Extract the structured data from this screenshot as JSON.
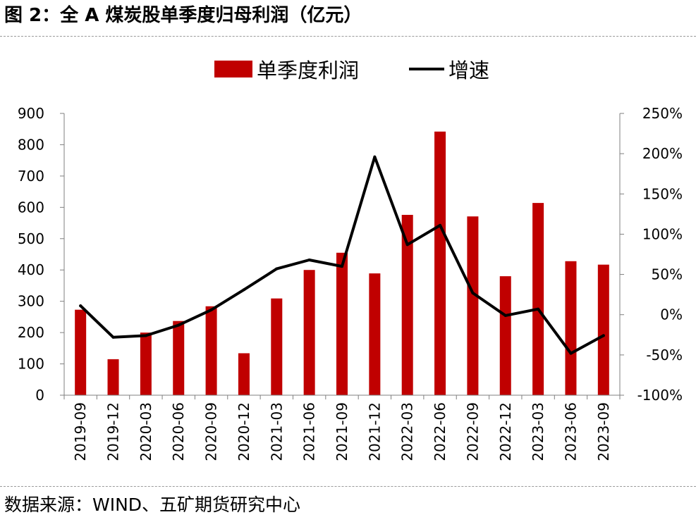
{
  "figure": {
    "label": "图 2：",
    "title": "全 A 煤炭股单季度归母利润（亿元）"
  },
  "source": {
    "label": "数据来源：",
    "text": "WIND、五矿期货研究中心"
  },
  "colors": {
    "bar": "#c00000",
    "line": "#000000",
    "axis": "#7f7f7f"
  },
  "chart_data": {
    "type": "bar",
    "categories": [
      "2019-09",
      "2019-12",
      "2020-03",
      "2020-06",
      "2020-09",
      "2020-12",
      "2021-03",
      "2021-06",
      "2021-09",
      "2021-12",
      "2022-03",
      "2022-06",
      "2022-09",
      "2022-12",
      "2023-03",
      "2023-06",
      "2023-09"
    ],
    "series": [
      {
        "name": "单季度利润",
        "type": "bar",
        "axis": "left",
        "values": [
          273,
          115,
          200,
          237,
          284,
          134,
          309,
          400,
          455,
          389,
          576,
          842,
          571,
          380,
          614,
          428,
          417
        ]
      },
      {
        "name": "增速",
        "type": "line",
        "axis": "right",
        "values": [
          0.11,
          -0.28,
          -0.26,
          -0.13,
          0.06,
          0.31,
          0.57,
          0.68,
          0.6,
          1.96,
          0.87,
          1.11,
          0.27,
          -0.01,
          0.07,
          -0.48,
          -0.26
        ]
      }
    ],
    "y_left": {
      "ylim": [
        0,
        900
      ],
      "ticks": [
        "0",
        "100",
        "200",
        "300",
        "400",
        "500",
        "600",
        "700",
        "800",
        "900"
      ]
    },
    "y_right": {
      "ylim": [
        -1.0,
        2.5
      ],
      "ticks": [
        "-100%",
        "-50%",
        "0%",
        "50%",
        "100%",
        "150%",
        "200%",
        "250%"
      ]
    },
    "legend": {
      "placement": "top-center",
      "entries": [
        "单季度利润",
        "增速"
      ]
    },
    "grid": false
  }
}
